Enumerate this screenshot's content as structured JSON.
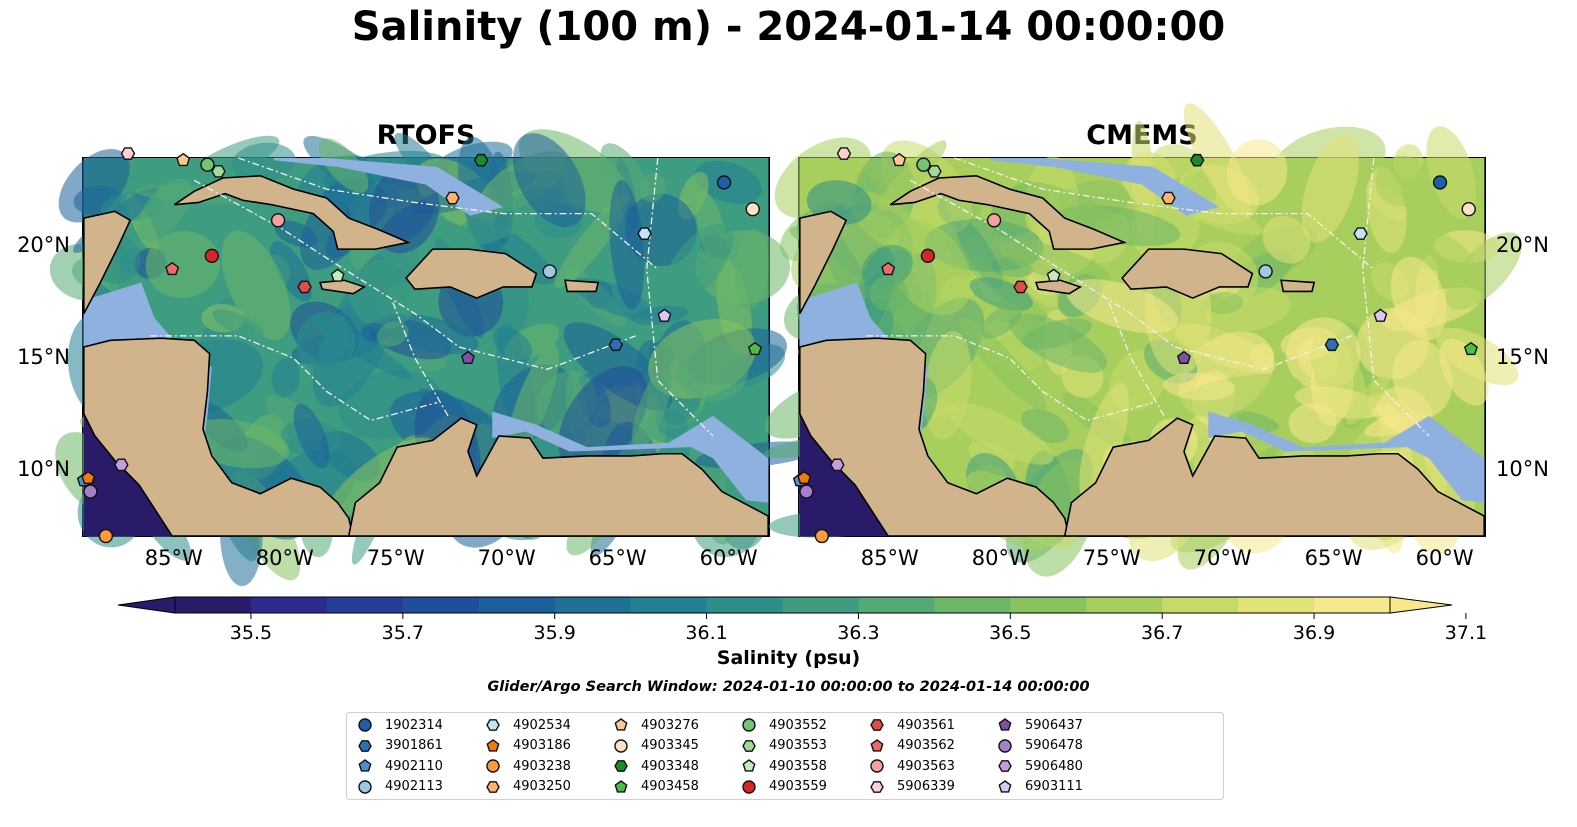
{
  "title": "Salinity (100 m) - 2024-01-14 00:00:00",
  "panels": [
    {
      "title": "RTOFS",
      "palette_shift": 0
    },
    {
      "title": "CMEMS",
      "palette_shift": 1
    }
  ],
  "axes": {
    "x_ticks": [
      "85°W",
      "80°W",
      "75°W",
      "70°W",
      "65°W",
      "60°W"
    ],
    "y_ticks": [
      "20°N",
      "15°N",
      "10°N"
    ],
    "x_range": [
      -89,
      -58
    ],
    "y_range": [
      7,
      24
    ]
  },
  "colorbar": {
    "label": "Salinity (psu)",
    "ticks": [
      "35.5",
      "35.7",
      "35.9",
      "36.1",
      "36.3",
      "36.5",
      "36.7",
      "36.9",
      "37.1"
    ],
    "colors": [
      "#2a1b6a",
      "#2b2b8f",
      "#253d98",
      "#1f4f9b",
      "#1b609b",
      "#1e7097",
      "#237f91",
      "#2e8e8a",
      "#3e9c80",
      "#53aa74",
      "#6cb767",
      "#89c35e",
      "#a8cf5e",
      "#c6da68",
      "#e1e278",
      "#f6e88c"
    ],
    "extend": "both"
  },
  "search_window": "Glider/Argo Search Window: 2024-01-10 00:00:00 to 2024-01-14 00:00:00",
  "chart_data": {
    "type": "scatter",
    "title": "Salinity (100 m) - 2024-01-14 00:00:00",
    "colorbar_label": "Salinity (psu)",
    "vmin": 35.5,
    "vmax": 37.1,
    "xlim": [
      -89,
      -58
    ],
    "ylim": [
      7,
      24
    ],
    "series": [
      {
        "name": "1902314",
        "marker": "circle",
        "color": "#1f5fa8",
        "x": [
          -60.0
        ],
        "y": [
          22.9
        ]
      },
      {
        "name": "3901861",
        "marker": "hexagon",
        "color": "#2d6fb5",
        "x": [
          -64.9
        ],
        "y": [
          15.6
        ]
      },
      {
        "name": "4902110",
        "marker": "pentagon",
        "color": "#4c8fd0",
        "x": [
          -89.0
        ],
        "y": [
          9.5
        ]
      },
      {
        "name": "4902113",
        "marker": "circle",
        "color": "#9ecae1",
        "x": [
          -67.9
        ],
        "y": [
          18.9
        ]
      },
      {
        "name": "4902534",
        "marker": "hexagon",
        "color": "#c6e2f5",
        "x": [
          -63.6
        ],
        "y": [
          20.6
        ]
      },
      {
        "name": "4903186",
        "marker": "pentagon",
        "color": "#f07a10",
        "x": [
          -88.8
        ],
        "y": [
          9.6
        ]
      },
      {
        "name": "4903238",
        "marker": "circle",
        "color": "#fd9a3c",
        "x": [
          -88.0
        ],
        "y": [
          7.0
        ]
      },
      {
        "name": "4903250",
        "marker": "hexagon",
        "color": "#fdb36b",
        "x": [
          -72.3
        ],
        "y": [
          22.2
        ]
      },
      {
        "name": "4903276",
        "marker": "pentagon",
        "color": "#fdc98f",
        "x": [
          -84.5
        ],
        "y": [
          23.9
        ]
      },
      {
        "name": "4903345",
        "marker": "circle",
        "color": "#fde0c5",
        "x": [
          -58.7
        ],
        "y": [
          21.7
        ]
      },
      {
        "name": "4903348",
        "marker": "hexagon",
        "color": "#1a8a2a",
        "x": [
          -71.0
        ],
        "y": [
          23.9
        ]
      },
      {
        "name": "4903458",
        "marker": "pentagon",
        "color": "#4ebd48",
        "x": [
          -58.6
        ],
        "y": [
          15.4
        ]
      },
      {
        "name": "4903552",
        "marker": "circle",
        "color": "#74c476",
        "x": [
          -83.4
        ],
        "y": [
          23.7
        ]
      },
      {
        "name": "4903553",
        "marker": "hexagon",
        "color": "#a1d99b",
        "x": [
          -82.9
        ],
        "y": [
          23.4
        ]
      },
      {
        "name": "4903558",
        "marker": "pentagon",
        "color": "#c7e9c0",
        "x": [
          -77.5
        ],
        "y": [
          18.7
        ]
      },
      {
        "name": "4903559",
        "marker": "circle",
        "color": "#d62728",
        "x": [
          -83.2
        ],
        "y": [
          19.6
        ]
      },
      {
        "name": "4903561",
        "marker": "hexagon",
        "color": "#e34a4a",
        "x": [
          -79.0
        ],
        "y": [
          18.2
        ]
      },
      {
        "name": "4903562",
        "marker": "pentagon",
        "color": "#f06a6a",
        "x": [
          -85.0
        ],
        "y": [
          19.0
        ]
      },
      {
        "name": "4903563",
        "marker": "circle",
        "color": "#f4a0a0",
        "x": [
          -80.2
        ],
        "y": [
          21.2
        ]
      },
      {
        "name": "5906339",
        "marker": "hexagon",
        "color": "#fbd0d0",
        "x": [
          -87.0
        ],
        "y": [
          24.2
        ]
      },
      {
        "name": "5906437",
        "marker": "pentagon",
        "color": "#7e4fa8",
        "x": [
          -71.6
        ],
        "y": [
          15.0
        ]
      },
      {
        "name": "5906478",
        "marker": "circle",
        "color": "#a57fcc",
        "x": [
          -88.7
        ],
        "y": [
          9.0
        ]
      },
      {
        "name": "5906480",
        "marker": "hexagon",
        "color": "#c09ee0",
        "x": [
          -87.3
        ],
        "y": [
          10.2
        ]
      },
      {
        "name": "6903111",
        "marker": "pentagon",
        "color": "#dcc6f2",
        "x": [
          -62.7
        ],
        "y": [
          16.9
        ]
      }
    ]
  }
}
